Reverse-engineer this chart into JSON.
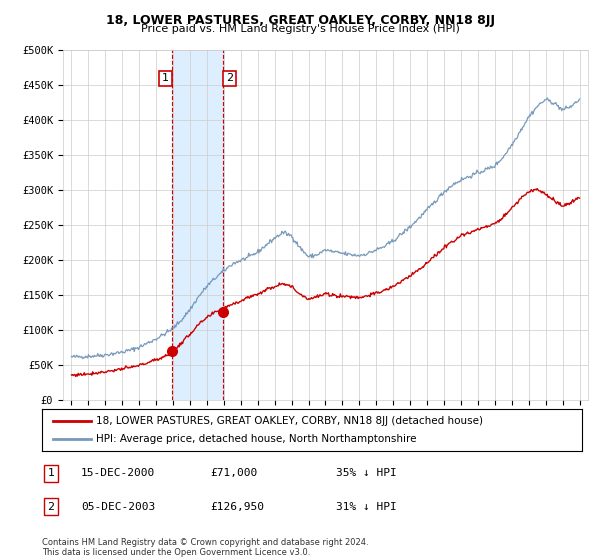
{
  "title": "18, LOWER PASTURES, GREAT OAKLEY, CORBY, NN18 8JJ",
  "subtitle": "Price paid vs. HM Land Registry's House Price Index (HPI)",
  "footer": "Contains HM Land Registry data © Crown copyright and database right 2024.\nThis data is licensed under the Open Government Licence v3.0.",
  "legend_line1": "18, LOWER PASTURES, GREAT OAKLEY, CORBY, NN18 8JJ (detached house)",
  "legend_line2": "HPI: Average price, detached house, North Northamptonshire",
  "transactions": [
    {
      "label": "1",
      "date": "15-DEC-2000",
      "price": "£71,000",
      "hpi": "35% ↓ HPI",
      "year": 2000.95,
      "value": 71000
    },
    {
      "label": "2",
      "date": "05-DEC-2003",
      "price": "£126,950",
      "hpi": "31% ↓ HPI",
      "year": 2003.92,
      "value": 126950
    }
  ],
  "red_color": "#cc0000",
  "blue_color": "#7799bb",
  "highlight_color": "#ddeeff",
  "grid_color": "#cccccc",
  "background_color": "#ffffff",
  "ylim": [
    0,
    500000
  ],
  "yticks": [
    0,
    50000,
    100000,
    150000,
    200000,
    250000,
    300000,
    350000,
    400000,
    450000,
    500000
  ],
  "ytick_labels": [
    "£0",
    "£50K",
    "£100K",
    "£150K",
    "£200K",
    "£250K",
    "£300K",
    "£350K",
    "£400K",
    "£450K",
    "£500K"
  ],
  "xlim_start": 1994.5,
  "xlim_end": 2025.5,
  "hpi_data": [
    [
      1995.0,
      62000
    ],
    [
      1995.5,
      62500
    ],
    [
      1996.0,
      63000
    ],
    [
      1996.5,
      64000
    ],
    [
      1997.0,
      65000
    ],
    [
      1997.5,
      67000
    ],
    [
      1998.0,
      69000
    ],
    [
      1998.5,
      72000
    ],
    [
      1999.0,
      76000
    ],
    [
      1999.5,
      82000
    ],
    [
      2000.0,
      88000
    ],
    [
      2000.5,
      95000
    ],
    [
      2001.0,
      103000
    ],
    [
      2001.5,
      115000
    ],
    [
      2002.0,
      130000
    ],
    [
      2002.5,
      148000
    ],
    [
      2003.0,
      163000
    ],
    [
      2003.5,
      175000
    ],
    [
      2004.0,
      185000
    ],
    [
      2004.5,
      195000
    ],
    [
      2005.0,
      200000
    ],
    [
      2005.5,
      205000
    ],
    [
      2006.0,
      212000
    ],
    [
      2006.5,
      222000
    ],
    [
      2007.0,
      232000
    ],
    [
      2007.5,
      240000
    ],
    [
      2008.0,
      235000
    ],
    [
      2008.5,
      218000
    ],
    [
      2009.0,
      205000
    ],
    [
      2009.5,
      208000
    ],
    [
      2010.0,
      215000
    ],
    [
      2010.5,
      212000
    ],
    [
      2011.0,
      210000
    ],
    [
      2011.5,
      208000
    ],
    [
      2012.0,
      207000
    ],
    [
      2012.5,
      210000
    ],
    [
      2013.0,
      215000
    ],
    [
      2013.5,
      220000
    ],
    [
      2014.0,
      228000
    ],
    [
      2014.5,
      238000
    ],
    [
      2015.0,
      248000
    ],
    [
      2015.5,
      260000
    ],
    [
      2016.0,
      272000
    ],
    [
      2016.5,
      285000
    ],
    [
      2017.0,
      298000
    ],
    [
      2017.5,
      308000
    ],
    [
      2018.0,
      315000
    ],
    [
      2018.5,
      320000
    ],
    [
      2019.0,
      325000
    ],
    [
      2019.5,
      330000
    ],
    [
      2020.0,
      335000
    ],
    [
      2020.5,
      348000
    ],
    [
      2021.0,
      365000
    ],
    [
      2021.5,
      385000
    ],
    [
      2022.0,
      405000
    ],
    [
      2022.5,
      420000
    ],
    [
      2023.0,
      430000
    ],
    [
      2023.5,
      425000
    ],
    [
      2024.0,
      415000
    ],
    [
      2024.5,
      420000
    ],
    [
      2025.0,
      430000
    ]
  ],
  "red_data": [
    [
      1995.0,
      36000
    ],
    [
      1995.5,
      37000
    ],
    [
      1996.0,
      38000
    ],
    [
      1996.5,
      39500
    ],
    [
      1997.0,
      41000
    ],
    [
      1997.5,
      43000
    ],
    [
      1998.0,
      45000
    ],
    [
      1998.5,
      47000
    ],
    [
      1999.0,
      50000
    ],
    [
      1999.5,
      54000
    ],
    [
      2000.0,
      58000
    ],
    [
      2000.5,
      63000
    ],
    [
      2001.0,
      71000
    ],
    [
      2001.5,
      82000
    ],
    [
      2002.0,
      95000
    ],
    [
      2002.5,
      108000
    ],
    [
      2003.0,
      118000
    ],
    [
      2003.5,
      126000
    ],
    [
      2004.0,
      132000
    ],
    [
      2004.5,
      138000
    ],
    [
      2005.0,
      142000
    ],
    [
      2005.5,
      148000
    ],
    [
      2006.0,
      152000
    ],
    [
      2006.5,
      158000
    ],
    [
      2007.0,
      163000
    ],
    [
      2007.5,
      168000
    ],
    [
      2008.0,
      162000
    ],
    [
      2008.5,
      152000
    ],
    [
      2009.0,
      145000
    ],
    [
      2009.5,
      148000
    ],
    [
      2010.0,
      152000
    ],
    [
      2010.5,
      150000
    ],
    [
      2011.0,
      149000
    ],
    [
      2011.5,
      148000
    ],
    [
      2012.0,
      147000
    ],
    [
      2012.5,
      150000
    ],
    [
      2013.0,
      153000
    ],
    [
      2013.5,
      157000
    ],
    [
      2014.0,
      163000
    ],
    [
      2014.5,
      170000
    ],
    [
      2015.0,
      178000
    ],
    [
      2015.5,
      187000
    ],
    [
      2016.0,
      196000
    ],
    [
      2016.5,
      207000
    ],
    [
      2017.0,
      218000
    ],
    [
      2017.5,
      228000
    ],
    [
      2018.0,
      235000
    ],
    [
      2018.5,
      240000
    ],
    [
      2019.0,
      244000
    ],
    [
      2019.5,
      248000
    ],
    [
      2020.0,
      252000
    ],
    [
      2020.5,
      262000
    ],
    [
      2021.0,
      275000
    ],
    [
      2021.5,
      288000
    ],
    [
      2022.0,
      298000
    ],
    [
      2022.5,
      302000
    ],
    [
      2023.0,
      295000
    ],
    [
      2023.5,
      285000
    ],
    [
      2024.0,
      278000
    ],
    [
      2024.5,
      282000
    ],
    [
      2025.0,
      290000
    ]
  ]
}
